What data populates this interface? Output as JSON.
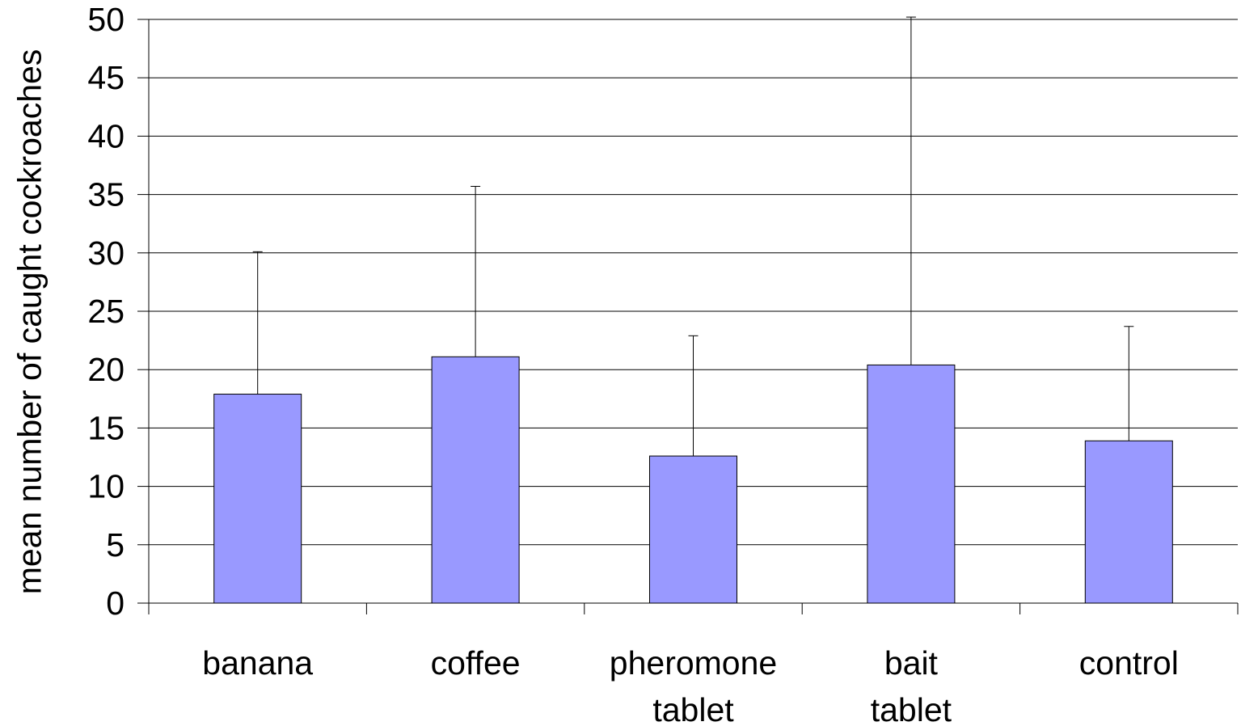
{
  "chart_data": {
    "type": "bar",
    "categories": [
      [
        "banana"
      ],
      [
        "coffee"
      ],
      [
        "pheromone",
        "tablet"
      ],
      [
        "bait",
        "tablet"
      ],
      [
        "control"
      ]
    ],
    "values": [
      17.9,
      21.1,
      12.6,
      20.4,
      13.9
    ],
    "error_upper": [
      30.1,
      35.7,
      22.9,
      50.2,
      23.7
    ],
    "ylabel": "mean number of caught cockroaches",
    "ylim": [
      0,
      50
    ],
    "yticks": [
      0,
      5,
      10,
      15,
      20,
      25,
      30,
      35,
      40,
      45,
      50
    ],
    "grid": true,
    "bar_color": "#9999ff",
    "bar_outline": "#000000"
  }
}
